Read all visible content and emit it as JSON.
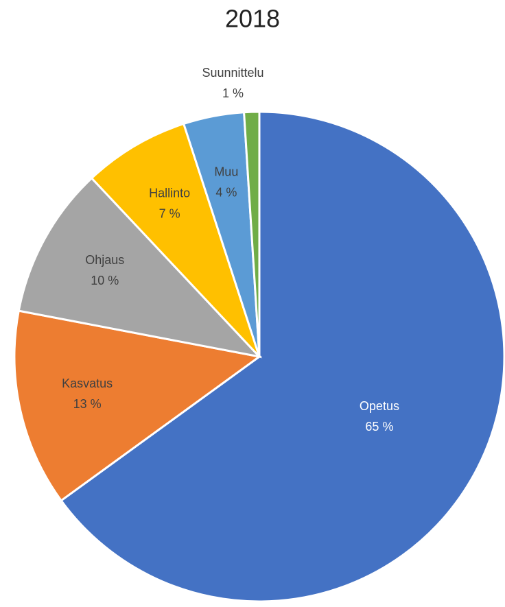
{
  "chart_data": {
    "type": "pie",
    "title": "2018",
    "categories": [
      "Opetus",
      "Kasvatus",
      "Ohjaus",
      "Hallinto",
      "Muu",
      "Suunnittelu"
    ],
    "values": [
      65,
      13,
      10,
      7,
      4,
      1
    ],
    "value_labels": [
      "65 %",
      "13 %",
      "10 %",
      "7 %",
      "4 %",
      "1 %"
    ],
    "colors": [
      "#4472c4",
      "#ed7d31",
      "#a5a5a5",
      "#ffc000",
      "#5b9bd5",
      "#70ad47"
    ]
  }
}
